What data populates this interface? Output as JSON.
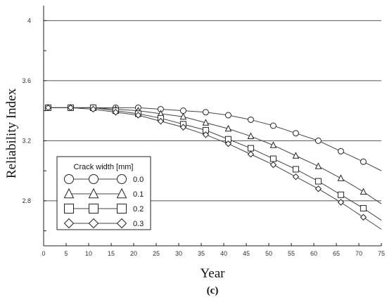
{
  "chart_data": {
    "type": "line",
    "title": "",
    "xlabel": "Year",
    "ylabel": "Reliability Index",
    "caption": "(c)",
    "xlim": [
      0,
      75
    ],
    "ylim": [
      2.5,
      4.1
    ],
    "xticks": [
      0,
      5,
      10,
      15,
      20,
      25,
      30,
      35,
      40,
      45,
      50,
      55,
      60,
      65,
      70,
      75
    ],
    "yticks": [
      2.8,
      3.2,
      3.6,
      4
    ],
    "ytick_labels": [
      "2.8",
      "3.2",
      "3.6",
      "4"
    ],
    "grid": "horizontal",
    "legend": {
      "title": "Crack width [mm]",
      "placement": "lower-left"
    },
    "series": [
      {
        "name": "0.0",
        "marker": "circle",
        "x": [
          1,
          6,
          11,
          16,
          21,
          26,
          31,
          36,
          41,
          46,
          51,
          56,
          61,
          66,
          71
        ],
        "y": [
          3.42,
          3.42,
          3.42,
          3.42,
          3.42,
          3.41,
          3.4,
          3.39,
          3.37,
          3.34,
          3.3,
          3.25,
          3.2,
          3.13,
          3.06
        ],
        "curve_end": [
          75,
          3.0
        ]
      },
      {
        "name": "0.1",
        "marker": "triangle",
        "x": [
          1,
          6,
          11,
          16,
          21,
          26,
          31,
          36,
          41,
          46,
          51,
          56,
          61,
          66,
          71
        ],
        "y": [
          3.42,
          3.42,
          3.42,
          3.41,
          3.4,
          3.38,
          3.36,
          3.32,
          3.28,
          3.23,
          3.17,
          3.1,
          3.03,
          2.95,
          2.86
        ],
        "curve_end": [
          75,
          2.78
        ]
      },
      {
        "name": "0.2",
        "marker": "square",
        "x": [
          1,
          6,
          11,
          16,
          21,
          26,
          31,
          36,
          41,
          46,
          51,
          56,
          61,
          66,
          71
        ],
        "y": [
          3.42,
          3.42,
          3.42,
          3.4,
          3.38,
          3.35,
          3.31,
          3.27,
          3.21,
          3.15,
          3.08,
          3.01,
          2.93,
          2.84,
          2.75
        ],
        "curve_end": [
          75,
          2.67
        ]
      },
      {
        "name": "0.3",
        "marker": "diamond",
        "x": [
          1,
          6,
          11,
          16,
          21,
          26,
          31,
          36,
          41,
          46,
          51,
          56,
          61,
          66,
          71
        ],
        "y": [
          3.42,
          3.42,
          3.41,
          3.39,
          3.37,
          3.33,
          3.29,
          3.24,
          3.18,
          3.11,
          3.04,
          2.96,
          2.88,
          2.79,
          2.69
        ],
        "curve_end": [
          75,
          2.61
        ]
      }
    ]
  }
}
